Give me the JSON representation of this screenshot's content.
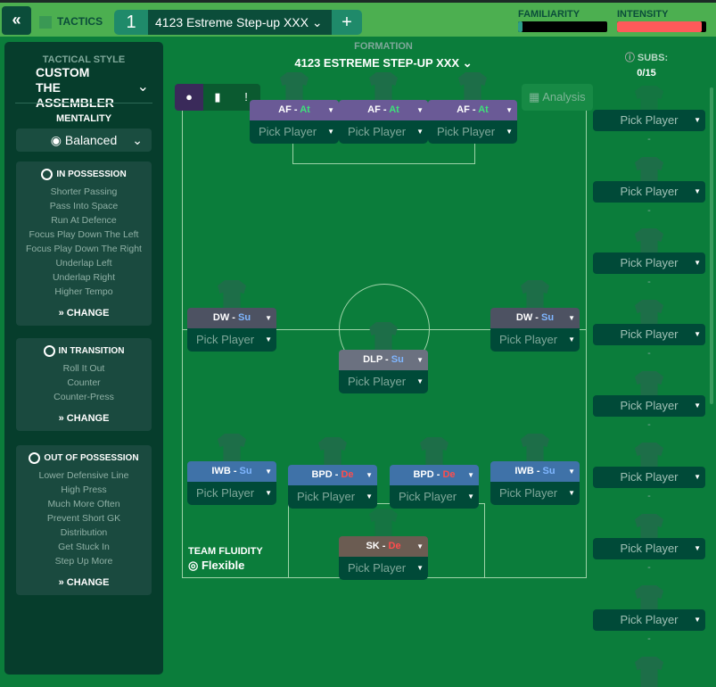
{
  "header": {
    "back_icon": "double-chevron-left-icon",
    "tactics_label": "TACTICS",
    "slot_number": "1",
    "tactic_name": "4123 Estreme Step-up  XXX",
    "add_label": "+",
    "familiarity_label": "FAMILIARITY",
    "familiarity_value": 0.05,
    "intensity_label": "INTENSITY",
    "intensity_value": 0.95,
    "familiarity_color": "#2e9e8a",
    "intensity_color": "#ff5a5a"
  },
  "sidebar": {
    "style_label": "TACTICAL STYLE",
    "style_name": "CUSTOM THE ASSEMBLER",
    "mentality_label": "MENTALITY",
    "mentality": "Balanced",
    "sections": [
      {
        "title": "IN POSSESSION",
        "items": [
          "Shorter Passing",
          "Pass Into Space",
          "Run At Defence",
          "Focus Play Down The Left",
          "Focus Play Down The Right",
          "Underlap Left",
          "Underlap Right",
          "Higher Tempo"
        ],
        "change": "CHANGE"
      },
      {
        "title": "IN TRANSITION",
        "items": [
          "Roll It Out",
          "Counter",
          "Counter-Press"
        ],
        "change": "CHANGE"
      },
      {
        "title": "OUT OF POSSESSION",
        "items": [
          "Lower Defensive Line",
          "High Press",
          "Much More Often",
          "Prevent Short GK",
          "Distribution",
          "Get Stuck In",
          "Step Up More"
        ],
        "change": "CHANGE"
      }
    ]
  },
  "formation": {
    "label": "FORMATION",
    "name": "4123 ESTREME STEP-UP  XXX",
    "analysis": "Analysis",
    "fluidity_label": "TEAM FLUIDITY",
    "fluidity": "Flexible"
  },
  "positions": [
    {
      "role": "AF",
      "duty": "At",
      "pick": "Pick Player",
      "kind": "att"
    },
    {
      "role": "AF",
      "duty": "At",
      "pick": "Pick Player",
      "kind": "att"
    },
    {
      "role": "AF",
      "duty": "At",
      "pick": "Pick Player",
      "kind": "att"
    },
    {
      "role": "DW",
      "duty": "Su",
      "pick": "Pick Player",
      "kind": "mid"
    },
    {
      "role": "DW",
      "duty": "Su",
      "pick": "Pick Player",
      "kind": "mid"
    },
    {
      "role": "DLP",
      "duty": "Su",
      "pick": "Pick Player",
      "kind": "dm"
    },
    {
      "role": "IWB",
      "duty": "Su",
      "pick": "Pick Player",
      "kind": "def"
    },
    {
      "role": "IWB",
      "duty": "Su",
      "pick": "Pick Player",
      "kind": "def"
    },
    {
      "role": "BPD",
      "duty": "De",
      "pick": "Pick Player",
      "kind": "def"
    },
    {
      "role": "BPD",
      "duty": "De",
      "pick": "Pick Player",
      "kind": "def"
    },
    {
      "role": "SK",
      "duty": "De",
      "pick": "Pick Player",
      "kind": "gk"
    }
  ],
  "subs": {
    "label": "SUBS:",
    "count": "0/15",
    "items": [
      "Pick Player",
      "Pick Player",
      "Pick Player",
      "Pick Player",
      "Pick Player",
      "Pick Player",
      "Pick Player",
      "Pick Player"
    ],
    "empty": "-"
  },
  "colors": {
    "att": "#6a5a96",
    "mid": "#4d5262",
    "dm": "#6b7180",
    "def": "#3f72a8",
    "gk": "#6b5c52",
    "attack_duty": "#3ee07a",
    "support_duty": "#7fb6ff",
    "defend_duty": "#ff4d4d"
  }
}
